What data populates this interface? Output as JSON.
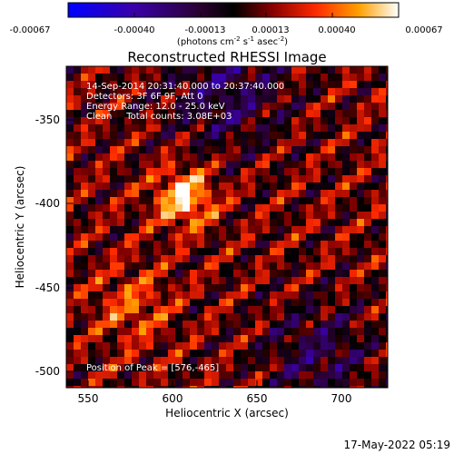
{
  "chart_data": {
    "type": "heatmap",
    "title": "Reconstructed RHESSI Image",
    "xlabel": "Heliocentric X (arcsec)",
    "ylabel": "Heliocentric Y (arcsec)",
    "xlim": [
      537,
      727
    ],
    "ylim": [
      -513,
      -322
    ],
    "xticks": [
      550,
      600,
      650,
      700
    ],
    "yticks": [
      -350,
      -400,
      -450,
      -500
    ],
    "colorbar": {
      "min": -0.00067,
      "max": 0.00067,
      "ticks": [
        "-0.00067",
        "-0.00040",
        "-0.00013",
        "0.00013",
        "0.00040",
        "0.00067"
      ],
      "label": "(photons cm",
      "label_exp1": "-2",
      "label_mid": " s",
      "label_exp2": "-1",
      "label_mid2": " asec",
      "label_exp3": "-2",
      "label_end": ")"
    },
    "annotations": [
      "14-Sep-2014 20:31:40.000 to 20:37:40.000",
      "Detectors: 3F 6F 9F, Att 0",
      "Energy Range: 12.0 - 25.0 keV",
      "Clean     Total counts: 3.08E+03"
    ],
    "peak_label": "Position of Peak = [576,-465]",
    "peak": {
      "x": 576,
      "y": -465
    },
    "bright_source": {
      "x": 607,
      "y": -400
    },
    "grid": false,
    "timestamp": "17-May-2022 05:19"
  }
}
